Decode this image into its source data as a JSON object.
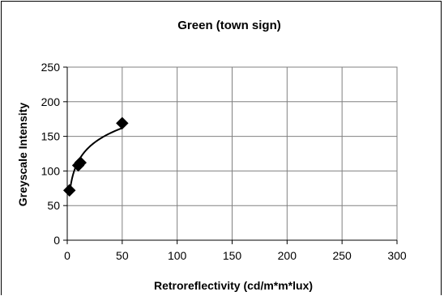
{
  "chart_data": {
    "type": "scatter",
    "title": "Green (town sign)",
    "xlabel": "Retroreflectivity (cd/m*m*lux)",
    "ylabel": "Greyscale Intensity",
    "xlim": [
      0,
      300
    ],
    "ylim": [
      0,
      250
    ],
    "xticks": [
      0,
      50,
      100,
      150,
      200,
      250,
      300
    ],
    "yticks": [
      0,
      50,
      100,
      150,
      200,
      250
    ],
    "grid": true,
    "legend": "none",
    "series": [
      {
        "marker": "diamond",
        "color": "#000000",
        "points": [
          {
            "x": 2,
            "y": 72
          },
          {
            "x": 10,
            "y": 108
          },
          {
            "x": 12,
            "y": 112
          },
          {
            "x": 50,
            "y": 169
          }
        ],
        "trendline": "logarithmic"
      }
    ]
  }
}
